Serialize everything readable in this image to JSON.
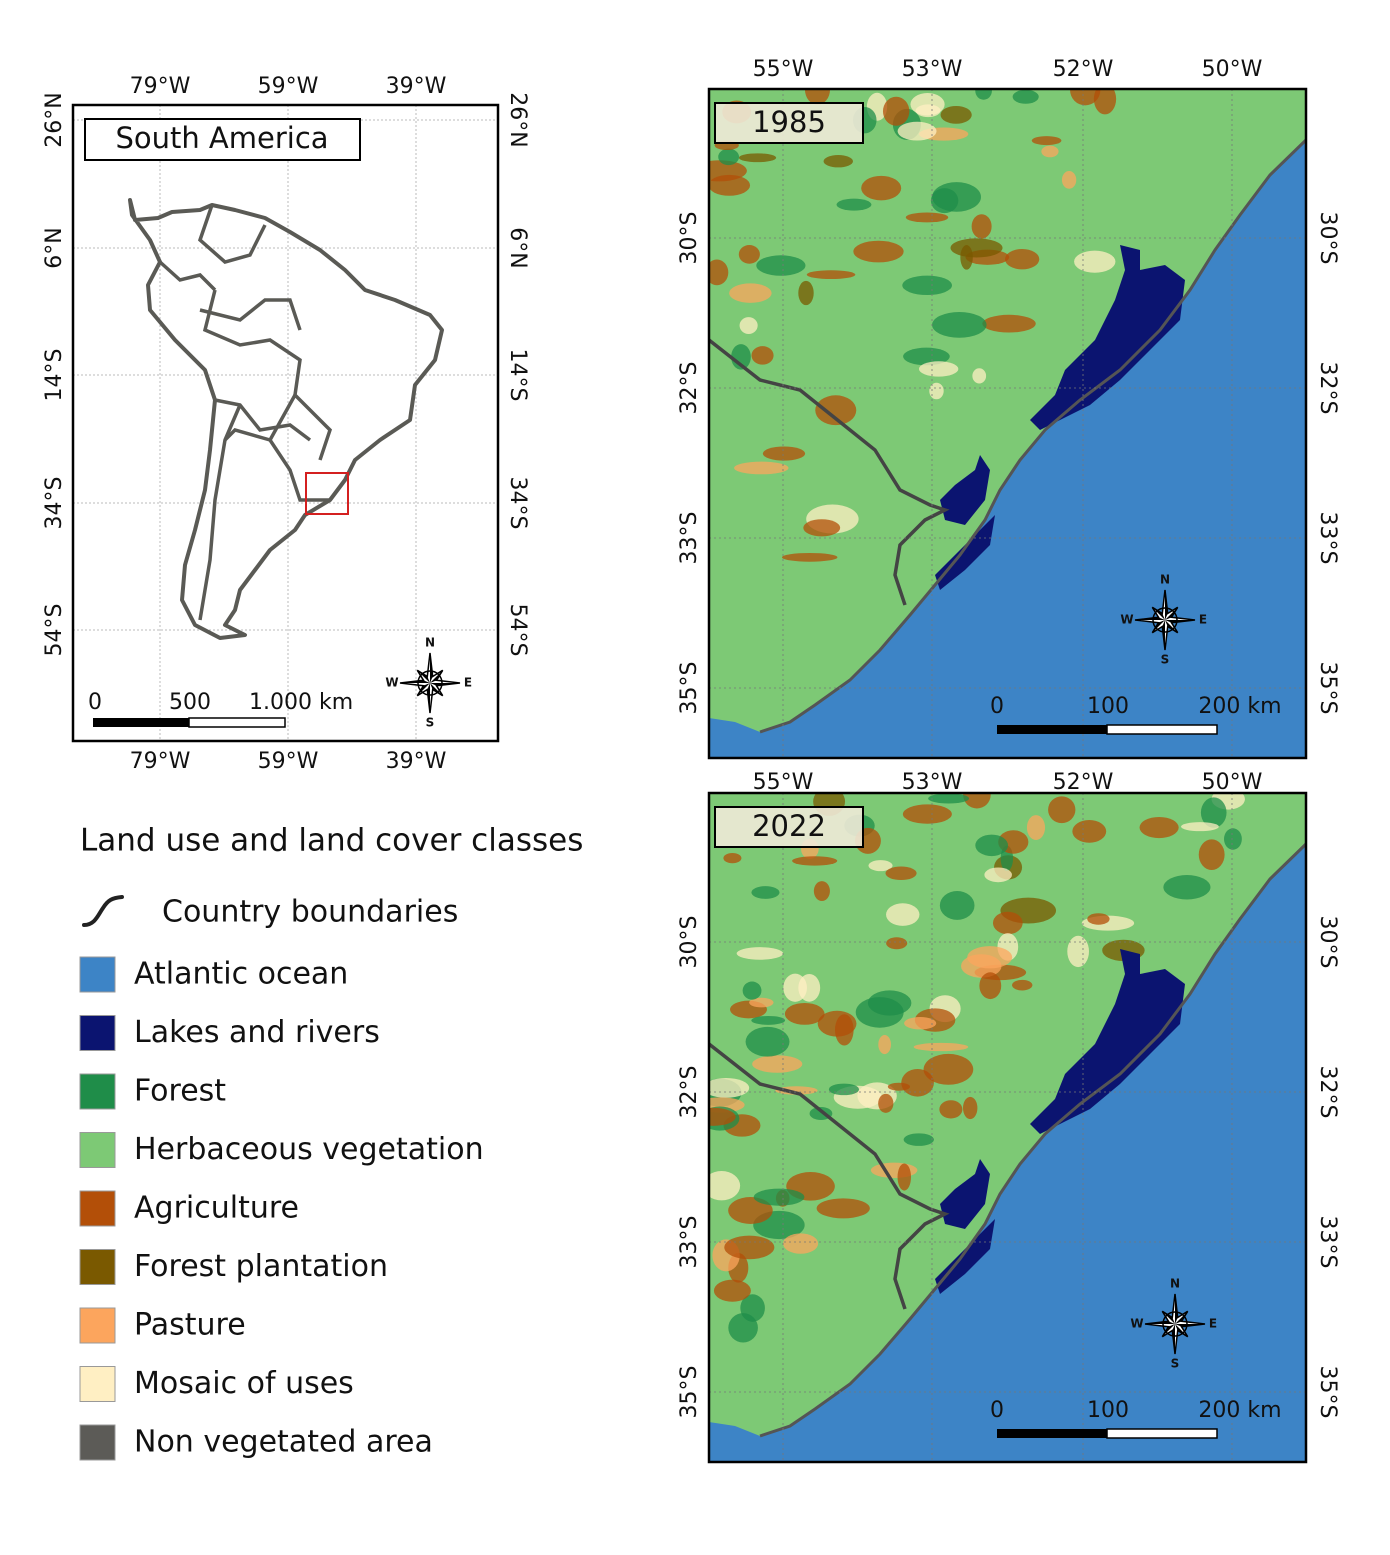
{
  "inset": {
    "title": "South America",
    "lon_labels": [
      "79°W",
      "59°W",
      "39°W"
    ],
    "lat_labels": [
      "26°N",
      "6°N",
      "14°S",
      "34°S",
      "54°S"
    ],
    "scale_labels": [
      "0",
      "500",
      "1.000 km"
    ]
  },
  "compass": {
    "n": "N",
    "e": "E",
    "s": "S",
    "w": "W"
  },
  "maps": [
    {
      "year": "1985"
    },
    {
      "year": "2022"
    }
  ],
  "map_axes": {
    "lon_labels": [
      "55°W",
      "53°W",
      "52°W",
      "50°W"
    ],
    "lat_labels": [
      "30°S",
      "32°S",
      "33°S",
      "35°S"
    ],
    "scale_labels": [
      "0",
      "100",
      "200 km"
    ]
  },
  "legend": {
    "title": "Land use and land cover classes",
    "boundary_label": "Country boundaries",
    "classes": [
      {
        "name": "Atlantic ocean",
        "color": "#3d84c6"
      },
      {
        "name": "Lakes and rivers",
        "color": "#0b1470"
      },
      {
        "name": "Forest",
        "color": "#1f8d49"
      },
      {
        "name": "Herbaceous vegetation",
        "color": "#7dc975"
      },
      {
        "name": "Agriculture",
        "color": "#b34f08"
      },
      {
        "name": "Forest plantation",
        "color": "#7a5900"
      },
      {
        "name": "Pasture",
        "color": "#fca55d"
      },
      {
        "name": "Mosaic of uses",
        "color": "#ffefc3"
      },
      {
        "name": "Non vegetated area",
        "color": "#5c5b57"
      }
    ]
  }
}
